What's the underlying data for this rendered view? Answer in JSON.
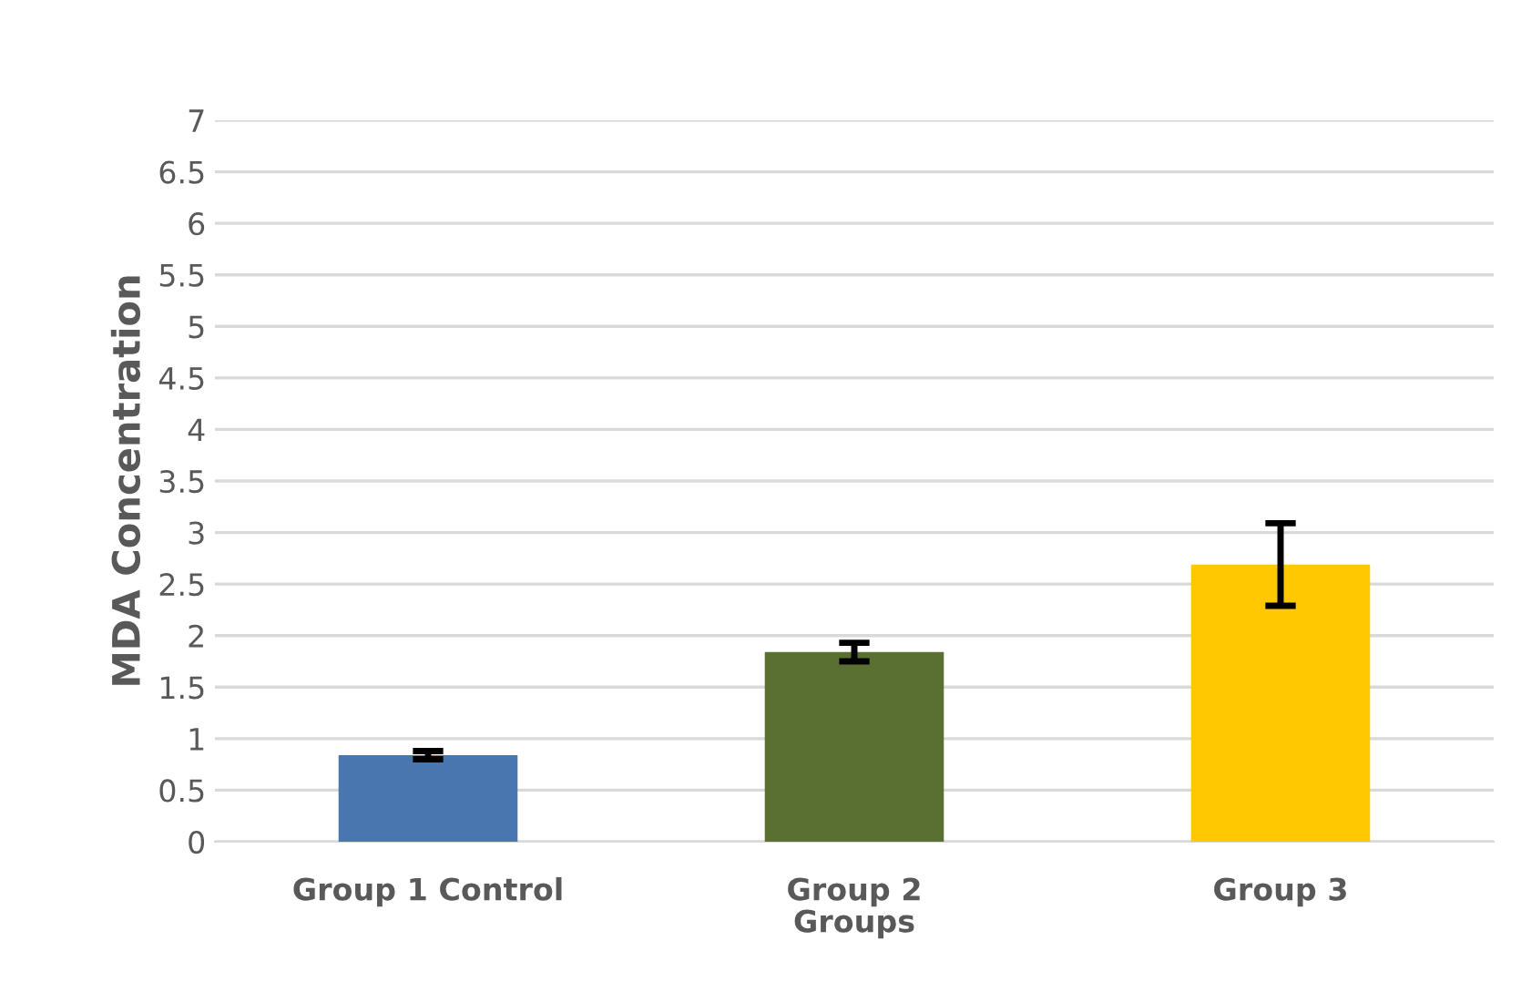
{
  "chart_data": {
    "type": "bar",
    "ylabel": "MDA Concentration",
    "xlabel": "Groups",
    "categories": [
      "Group 1 Control",
      "Group 2",
      "Group 3"
    ],
    "values": [
      0.84,
      1.84,
      2.69
    ],
    "errors": [
      0.04,
      0.09,
      0.4
    ],
    "colors": [
      "#4a76b0",
      "#5a7032",
      "#ffc800"
    ],
    "ylim": [
      0,
      7
    ],
    "yticks": [
      0,
      0.5,
      1,
      1.5,
      2,
      2.5,
      3,
      3.5,
      4,
      4.5,
      5,
      5.5,
      6,
      6.5,
      7
    ],
    "grid": "y"
  }
}
